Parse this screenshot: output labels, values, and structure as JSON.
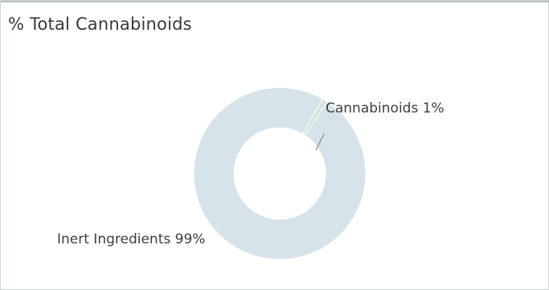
{
  "panel": {
    "title": "% Total Cannabinoids"
  },
  "chart_data": {
    "type": "pie",
    "donut": true,
    "title": "% Total Cannabinoids",
    "slices": [
      {
        "label": "Cannabinoids 1%",
        "category": "Cannabinoids",
        "value": 1,
        "color": "#cfe6d8"
      },
      {
        "label": "Inert Ingredients 99%",
        "category": "Inert Ingredients",
        "value": 99,
        "color": "#d6e3ea"
      }
    ],
    "legend": "none"
  }
}
